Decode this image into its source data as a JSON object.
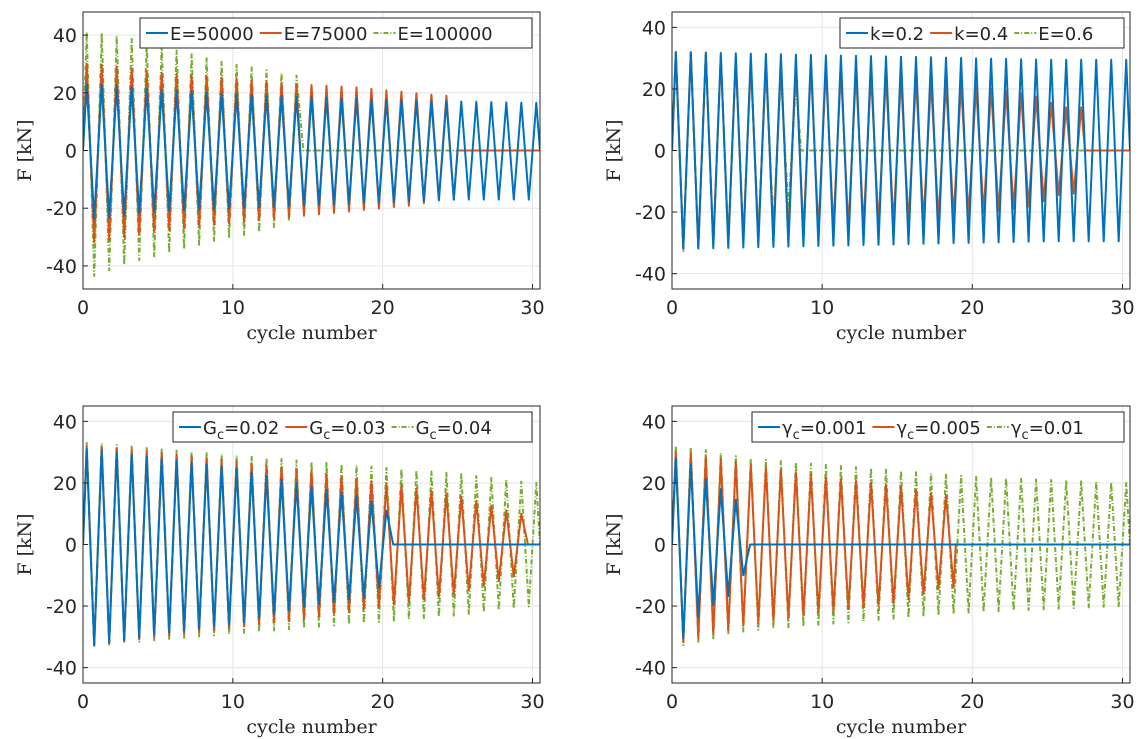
{
  "colors": {
    "series1": "#0072BD",
    "series2": "#D95319",
    "series3": "#77AC30",
    "grid": "#e6e6e6",
    "axis": "#262626"
  },
  "chart_data": [
    {
      "type": "line",
      "xlabel": "cycle number",
      "ylabel": "F [kN]",
      "xlim": [
        0,
        30.5
      ],
      "ylim": [
        -48,
        48
      ],
      "xticks": [
        "0",
        "10",
        "20",
        "30"
      ],
      "xtick_values": [
        0,
        10,
        20,
        30
      ],
      "yticks": [
        "40",
        "20",
        "0",
        "-20",
        "-40"
      ],
      "ytick_values": [
        40,
        20,
        0,
        -20,
        -40
      ],
      "grid": true,
      "legend_position": "top-right",
      "series": [
        {
          "label_main": "E=50000",
          "label_sub": "",
          "color": "#0072BD",
          "dash": "solid",
          "failure_cycle": 30.5,
          "peak_points": [
            [
              0.9,
              23
            ],
            [
              5,
              21
            ],
            [
              10,
              19.5
            ],
            [
              15,
              18.5
            ],
            [
              20,
              17.5
            ],
            [
              25,
              17
            ],
            [
              30,
              16.5
            ]
          ],
          "trough_points": [
            [
              0.5,
              -24
            ],
            [
              5,
              -21
            ],
            [
              10,
              -20
            ],
            [
              15,
              -19
            ],
            [
              20,
              -18
            ],
            [
              25,
              -17
            ],
            [
              30,
              -17
            ]
          ]
        },
        {
          "label_main": "E=75000",
          "label_sub": "",
          "color": "#D95319",
          "dash": "solid",
          "failure_cycle": 25,
          "peak_points": [
            [
              0.9,
              30
            ],
            [
              5,
              27
            ],
            [
              10,
              25
            ],
            [
              14,
              23
            ],
            [
              18,
              22
            ],
            [
              22,
              20
            ],
            [
              24,
              19
            ]
          ],
          "trough_points": [
            [
              0.5,
              -32
            ],
            [
              5,
              -28
            ],
            [
              10,
              -25
            ],
            [
              14,
              -23
            ],
            [
              18,
              -21
            ],
            [
              22,
              -19
            ],
            [
              24,
              -17
            ]
          ]
        },
        {
          "label_main": "E=100000",
          "label_sub": "",
          "color": "#77AC30",
          "dash": "dashdot",
          "failure_cycle": 14.7,
          "peak_points": [
            [
              0.9,
              41
            ],
            [
              3,
              39
            ],
            [
              6,
              35
            ],
            [
              9,
              31
            ],
            [
              12,
              28
            ],
            [
              14,
              26
            ]
          ],
          "trough_points": [
            [
              0.5,
              -44
            ],
            [
              3,
              -39
            ],
            [
              6,
              -35
            ],
            [
              9,
              -31
            ],
            [
              12,
              -28
            ],
            [
              14,
              -24
            ]
          ]
        }
      ]
    },
    {
      "type": "line",
      "xlabel": "cycle number",
      "ylabel": "F [kN]",
      "xlim": [
        0,
        30.5
      ],
      "ylim": [
        -45,
        45
      ],
      "xticks": [
        "0",
        "10",
        "20",
        "30"
      ],
      "xtick_values": [
        0,
        10,
        20,
        30
      ],
      "yticks": [
        "40",
        "20",
        "0",
        "-20",
        "-40"
      ],
      "ytick_values": [
        40,
        20,
        0,
        -20,
        -40
      ],
      "grid": true,
      "legend_position": "top-right",
      "series": [
        {
          "label_main": "k=0.2",
          "label_sub": "",
          "color": "#0072BD",
          "dash": "solid",
          "failure_cycle": 30.5,
          "peak_points": [
            [
              0.9,
              32
            ],
            [
              5,
              31.5
            ],
            [
              10,
              31
            ],
            [
              15,
              30.5
            ],
            [
              20,
              30
            ],
            [
              25,
              29.5
            ],
            [
              30,
              29.5
            ]
          ],
          "trough_points": [
            [
              0.5,
              -32
            ],
            [
              5,
              -31.5
            ],
            [
              10,
              -31
            ],
            [
              15,
              -30.5
            ],
            [
              20,
              -30
            ],
            [
              25,
              -29.5
            ],
            [
              30,
              -29.5
            ]
          ]
        },
        {
          "label_main": "k=0.4",
          "label_sub": "",
          "color": "#D95319",
          "dash": "solid",
          "failure_cycle": 27.5,
          "peak_points": [
            [
              0.9,
              32
            ],
            [
              5,
              29
            ],
            [
              10,
              27
            ],
            [
              15,
              24
            ],
            [
              20,
              21
            ],
            [
              24,
              18
            ],
            [
              26,
              14
            ]
          ],
          "trough_points": [
            [
              0.5,
              -32
            ],
            [
              5,
              -29
            ],
            [
              10,
              -26
            ],
            [
              15,
              -24
            ],
            [
              20,
              -21
            ],
            [
              24,
              -18
            ],
            [
              26,
              -14
            ]
          ]
        },
        {
          "label_main": "E=0.6",
          "label_sub": "",
          "color": "#77AC30",
          "dash": "dashdot",
          "failure_cycle": 8.6,
          "peak_points": [
            [
              0.9,
              32
            ],
            [
              3,
              31
            ],
            [
              6,
              27
            ],
            [
              8,
              22
            ]
          ],
          "trough_points": [
            [
              0.5,
              -33
            ],
            [
              3,
              -30
            ],
            [
              6,
              -27
            ],
            [
              8,
              -18
            ]
          ]
        }
      ]
    },
    {
      "type": "line",
      "xlabel": "cycle number",
      "ylabel": "F [kN]",
      "xlim": [
        0,
        30.5
      ],
      "ylim": [
        -45,
        45
      ],
      "xticks": [
        "0",
        "10",
        "20",
        "30"
      ],
      "xtick_values": [
        0,
        10,
        20,
        30
      ],
      "yticks": [
        "40",
        "20",
        "0",
        "-20",
        "-40"
      ],
      "ytick_values": [
        40,
        20,
        0,
        -20,
        -40
      ],
      "grid": true,
      "legend_position": "top-right",
      "series": [
        {
          "label_main": "G",
          "label_sub": "c",
          "label_tail": "=0.02",
          "color": "#0072BD",
          "dash": "solid",
          "failure_cycle": 20.7,
          "peak_points": [
            [
              0.9,
              31
            ],
            [
              5,
              28
            ],
            [
              10,
              25
            ],
            [
              15,
              19
            ],
            [
              19,
              15
            ],
            [
              20,
              11
            ]
          ],
          "trough_points": [
            [
              0.5,
              -33
            ],
            [
              5,
              -29
            ],
            [
              10,
              -26
            ],
            [
              15,
              -20
            ],
            [
              19,
              -17
            ],
            [
              20,
              -13
            ]
          ]
        },
        {
          "label_main": "G",
          "label_sub": "c",
          "label_tail": "=0.03",
          "color": "#D95319",
          "dash": "solid",
          "failure_cycle": 29.7,
          "peak_points": [
            [
              0.9,
              32
            ],
            [
              5,
              30
            ],
            [
              10,
              27
            ],
            [
              15,
              24
            ],
            [
              20,
              20
            ],
            [
              25,
              16
            ],
            [
              29,
              10
            ]
          ],
          "trough_points": [
            [
              0.5,
              -33
            ],
            [
              5,
              -30
            ],
            [
              10,
              -27
            ],
            [
              15,
              -24
            ],
            [
              20,
              -20
            ],
            [
              25,
              -16
            ],
            [
              29,
              -10
            ]
          ]
        },
        {
          "label_main": "G",
          "label_sub": "c",
          "label_tail": "=0.04",
          "color": "#77AC30",
          "dash": "dashdot",
          "failure_cycle": 30.5,
          "peak_points": [
            [
              0.9,
              33
            ],
            [
              5,
              31
            ],
            [
              10,
              29
            ],
            [
              15,
              27
            ],
            [
              20,
              25
            ],
            [
              25,
              23
            ],
            [
              30,
              20
            ]
          ],
          "trough_points": [
            [
              0.5,
              -33
            ],
            [
              5,
              -31
            ],
            [
              10,
              -29
            ],
            [
              15,
              -27
            ],
            [
              20,
              -25
            ],
            [
              25,
              -23
            ],
            [
              30,
              -20
            ]
          ]
        }
      ]
    },
    {
      "type": "line",
      "xlabel": "cycle number",
      "ylabel": "F [kN]",
      "xlim": [
        0,
        30.5
      ],
      "ylim": [
        -45,
        45
      ],
      "xticks": [
        "0",
        "10",
        "20",
        "30"
      ],
      "xtick_values": [
        0,
        10,
        20,
        30
      ],
      "yticks": [
        "40",
        "20",
        "0",
        "-20",
        "-40"
      ],
      "ytick_values": [
        40,
        20,
        0,
        -20,
        -40
      ],
      "grid": true,
      "legend_position": "top-right",
      "series": [
        {
          "label_main": "γ",
          "label_sub": "c",
          "label_tail": "=0.001",
          "color": "#0072BD",
          "dash": "solid",
          "failure_cycle": 5.2,
          "peak_points": [
            [
              0.9,
              28
            ],
            [
              2,
              22
            ],
            [
              3,
              19
            ],
            [
              4,
              15
            ],
            [
              4.6,
              14
            ]
          ],
          "trough_points": [
            [
              0.5,
              -32
            ],
            [
              2,
              -22
            ],
            [
              3,
              -19
            ],
            [
              4,
              -16
            ],
            [
              4.6,
              -10
            ]
          ]
        },
        {
          "label_main": "γ",
          "label_sub": "c",
          "label_tail": "=0.005",
          "color": "#D95319",
          "dash": "solid",
          "failure_cycle": 18.9,
          "peak_points": [
            [
              0.9,
              30
            ],
            [
              5,
              26
            ],
            [
              10,
              22
            ],
            [
              15,
              19
            ],
            [
              18,
              16
            ]
          ],
          "trough_points": [
            [
              0.5,
              -32
            ],
            [
              5,
              -26
            ],
            [
              10,
              -22
            ],
            [
              15,
              -19
            ],
            [
              18,
              -14
            ]
          ]
        },
        {
          "label_main": "γ",
          "label_sub": "c",
          "label_tail": "=0.01",
          "color": "#77AC30",
          "dash": "dashdot",
          "failure_cycle": 30.5,
          "peak_points": [
            [
              0.9,
              32
            ],
            [
              5,
              28
            ],
            [
              10,
              26
            ],
            [
              15,
              24
            ],
            [
              20,
              22
            ],
            [
              25,
              21
            ],
            [
              30,
              20
            ]
          ],
          "trough_points": [
            [
              0.5,
              -33
            ],
            [
              5,
              -28
            ],
            [
              10,
              -26
            ],
            [
              15,
              -24
            ],
            [
              20,
              -22
            ],
            [
              25,
              -21
            ],
            [
              30,
              -20
            ]
          ]
        }
      ]
    }
  ]
}
